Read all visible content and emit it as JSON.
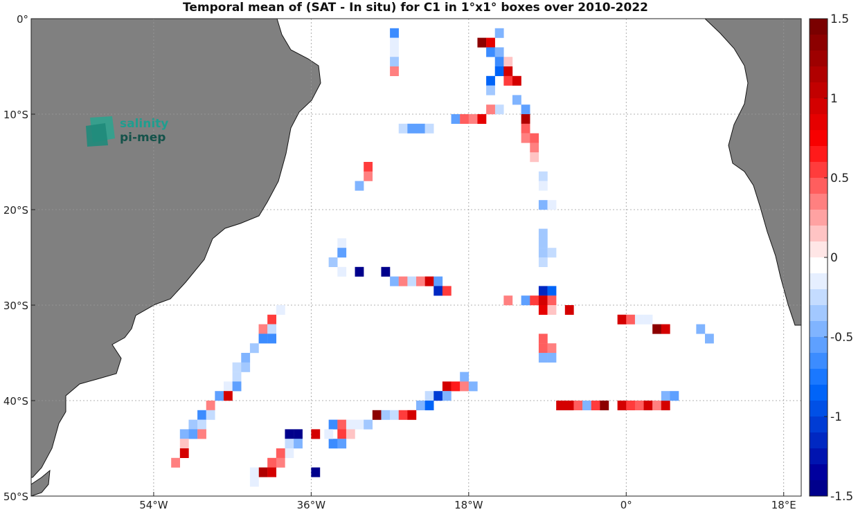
{
  "title": "Temporal mean of (SAT - In situ) for C1 in 1°x1° boxes over 2010-2022",
  "logo": {
    "line1": "salinity",
    "line2": "pi-mep"
  },
  "map": {
    "lon_range": [
      -68,
      20
    ],
    "lat_range": [
      -50,
      0
    ],
    "x_ticks": [
      {
        "lon": -54,
        "label": "54°W"
      },
      {
        "lon": -36,
        "label": "36°W"
      },
      {
        "lon": -18,
        "label": "18°W"
      },
      {
        "lon": 0,
        "label": "0°"
      },
      {
        "lon": 18,
        "label": "18°E"
      }
    ],
    "y_ticks": [
      {
        "lat": 0,
        "label": "0°"
      },
      {
        "lat": -10,
        "label": "10°S"
      },
      {
        "lat": -20,
        "label": "20°S"
      },
      {
        "lat": -30,
        "label": "30°S"
      },
      {
        "lat": -40,
        "label": "40°S"
      },
      {
        "lat": -50,
        "label": "50°S"
      }
    ],
    "land_color": "#808080",
    "grid": true
  },
  "colorbar": {
    "min": -1.5,
    "max": 1.5,
    "ticks": [
      {
        "value": 1.5,
        "label": "1.5"
      },
      {
        "value": 1,
        "label": "1"
      },
      {
        "value": 0.5,
        "label": "0.5"
      },
      {
        "value": 0,
        "label": "0"
      },
      {
        "value": -0.5,
        "label": "-0.5"
      },
      {
        "value": -1,
        "label": "-1"
      },
      {
        "value": -1.5,
        "label": "-1.5"
      }
    ],
    "colors_top_to_bottom": [
      "#7a0000",
      "#8c0000",
      "#9e0000",
      "#b00000",
      "#c20000",
      "#d40000",
      "#e60000",
      "#f80000",
      "#ff1a1a",
      "#ff3c3c",
      "#ff5e5e",
      "#ff8080",
      "#ffa2a2",
      "#ffc4c4",
      "#ffe6e6",
      "#ffffff",
      "#e6efff",
      "#c4dcff",
      "#a2c8ff",
      "#80b4ff",
      "#5ea0ff",
      "#3c8cff",
      "#1a78ff",
      "#0064f8",
      "#0050e6",
      "#003cd4",
      "#0028c2",
      "#0014b0",
      "#00009e",
      "#00008c"
    ]
  },
  "chart_data": {
    "type": "heatmap",
    "title": "Temporal mean of (SAT - In situ) for C1 in 1°x1° boxes over 2010-2022",
    "xlabel": "",
    "ylabel": "",
    "x_unit": "longitude (°E)",
    "y_unit": "latitude (°N)",
    "value_range": [
      -1.5,
      1.5
    ],
    "cells": [
      {
        "lon": -27,
        "lat": -1,
        "v": -0.6
      },
      {
        "lon": -27,
        "lat": -2,
        "v": -0.1
      },
      {
        "lon": -27,
        "lat": -3,
        "v": -0.1
      },
      {
        "lon": -27,
        "lat": -4,
        "v": -0.3
      },
      {
        "lon": -27,
        "lat": -5,
        "v": 0.4
      },
      {
        "lon": -15,
        "lat": -1,
        "v": -0.4
      },
      {
        "lon": -17,
        "lat": -2,
        "v": 1.4
      },
      {
        "lon": -16,
        "lat": -2,
        "v": 0.8
      },
      {
        "lon": -16,
        "lat": -3,
        "v": -0.6
      },
      {
        "lon": -15,
        "lat": -3,
        "v": -0.4
      },
      {
        "lon": -15,
        "lat": -4,
        "v": -0.6
      },
      {
        "lon": -14,
        "lat": -4,
        "v": 0.2
      },
      {
        "lon": -15,
        "lat": -5,
        "v": -0.8
      },
      {
        "lon": -14,
        "lat": -5,
        "v": 0.9
      },
      {
        "lon": -16,
        "lat": -6,
        "v": -0.8
      },
      {
        "lon": -14,
        "lat": -6,
        "v": 0.6
      },
      {
        "lon": -13,
        "lat": -6,
        "v": 0.9
      },
      {
        "lon": -16,
        "lat": -7,
        "v": -0.3
      },
      {
        "lon": -13,
        "lat": -8,
        "v": -0.4
      },
      {
        "lon": -15,
        "lat": -9,
        "v": -0.2
      },
      {
        "lon": -16,
        "lat": -9,
        "v": 0.3
      },
      {
        "lon": -12,
        "lat": -9,
        "v": -0.5
      },
      {
        "lon": -20,
        "lat": -10,
        "v": -0.5
      },
      {
        "lon": -19,
        "lat": -10,
        "v": 0.5
      },
      {
        "lon": -18,
        "lat": -10,
        "v": 0.3
      },
      {
        "lon": -17,
        "lat": -10,
        "v": 0.8
      },
      {
        "lon": -12,
        "lat": -10,
        "v": 1.1
      },
      {
        "lon": -26,
        "lat": -11,
        "v": -0.2
      },
      {
        "lon": -25,
        "lat": -11,
        "v": -0.5
      },
      {
        "lon": -24,
        "lat": -11,
        "v": -0.5
      },
      {
        "lon": -23,
        "lat": -11,
        "v": -0.2
      },
      {
        "lon": -12,
        "lat": -11,
        "v": 0.5
      },
      {
        "lon": -12,
        "lat": -12,
        "v": 0.4
      },
      {
        "lon": -11,
        "lat": -12,
        "v": 0.5
      },
      {
        "lon": -11,
        "lat": -13,
        "v": 0.4
      },
      {
        "lon": -11,
        "lat": -14,
        "v": 0.2
      },
      {
        "lon": -30,
        "lat": -15,
        "v": 0.6
      },
      {
        "lon": -30,
        "lat": -16,
        "v": 0.3
      },
      {
        "lon": -31,
        "lat": -17,
        "v": -0.4
      },
      {
        "lon": -10,
        "lat": -16,
        "v": -0.2
      },
      {
        "lon": -10,
        "lat": -17,
        "v": -0.1
      },
      {
        "lon": -10,
        "lat": -19,
        "v": -0.4
      },
      {
        "lon": -9,
        "lat": -19,
        "v": -0.1
      },
      {
        "lon": -10,
        "lat": -22,
        "v": -0.3
      },
      {
        "lon": -10,
        "lat": -23,
        "v": -0.3
      },
      {
        "lon": -10,
        "lat": -24,
        "v": -0.3
      },
      {
        "lon": -9,
        "lat": -24,
        "v": -0.2
      },
      {
        "lon": -10,
        "lat": -25,
        "v": -0.2
      },
      {
        "lon": -33,
        "lat": -23,
        "v": -0.1
      },
      {
        "lon": -33,
        "lat": -24,
        "v": -0.5
      },
      {
        "lon": -34,
        "lat": -25,
        "v": -0.3
      },
      {
        "lon": -33,
        "lat": -26,
        "v": -0.1
      },
      {
        "lon": -31,
        "lat": -26,
        "v": -1.5
      },
      {
        "lon": -28,
        "lat": -26,
        "v": -1.5
      },
      {
        "lon": -27,
        "lat": -27,
        "v": -0.4
      },
      {
        "lon": -26,
        "lat": -27,
        "v": 0.3
      },
      {
        "lon": -25,
        "lat": -27,
        "v": -0.2
      },
      {
        "lon": -24,
        "lat": -27,
        "v": 0.3
      },
      {
        "lon": -23,
        "lat": -27,
        "v": 1.0
      },
      {
        "lon": -22,
        "lat": -27,
        "v": -0.5
      },
      {
        "lon": -22,
        "lat": -28,
        "v": -1.1
      },
      {
        "lon": -21,
        "lat": -28,
        "v": 0.6
      },
      {
        "lon": -10,
        "lat": -28,
        "v": -1.1
      },
      {
        "lon": -9,
        "lat": -28,
        "v": -0.8
      },
      {
        "lon": -14,
        "lat": -29,
        "v": 0.4
      },
      {
        "lon": -12,
        "lat": -29,
        "v": -0.5
      },
      {
        "lon": -11,
        "lat": -29,
        "v": 0.6
      },
      {
        "lon": -10,
        "lat": -29,
        "v": 0.9
      },
      {
        "lon": -9,
        "lat": -29,
        "v": 0.5
      },
      {
        "lon": -10,
        "lat": -30,
        "v": 0.8
      },
      {
        "lon": -9,
        "lat": -30,
        "v": 0.2
      },
      {
        "lon": -7,
        "lat": -30,
        "v": 1.0
      },
      {
        "lon": -1,
        "lat": -31,
        "v": 1.0
      },
      {
        "lon": 0,
        "lat": -31,
        "v": 0.5
      },
      {
        "lon": 1,
        "lat": -31,
        "v": -0.1
      },
      {
        "lon": 2,
        "lat": -31,
        "v": -0.1
      },
      {
        "lon": 3,
        "lat": -32,
        "v": 1.4
      },
      {
        "lon": 4,
        "lat": -32,
        "v": 1.0
      },
      {
        "lon": 8,
        "lat": -32,
        "v": -0.4
      },
      {
        "lon": 9,
        "lat": -33,
        "v": -0.4
      },
      {
        "lon": -10,
        "lat": -33,
        "v": 0.5
      },
      {
        "lon": -10,
        "lat": -34,
        "v": 0.5
      },
      {
        "lon": -9,
        "lat": -34,
        "v": 0.4
      },
      {
        "lon": -10,
        "lat": -35,
        "v": -0.4
      },
      {
        "lon": -9,
        "lat": -35,
        "v": -0.4
      },
      {
        "lon": -40,
        "lat": -30,
        "v": -0.1
      },
      {
        "lon": -41,
        "lat": -31,
        "v": 0.6
      },
      {
        "lon": -42,
        "lat": -32,
        "v": 0.4
      },
      {
        "lon": -41,
        "lat": -32,
        "v": -0.2
      },
      {
        "lon": -42,
        "lat": -33,
        "v": -0.6
      },
      {
        "lon": -41,
        "lat": -33,
        "v": -0.6
      },
      {
        "lon": -43,
        "lat": -34,
        "v": -0.3
      },
      {
        "lon": -44,
        "lat": -35,
        "v": -0.4
      },
      {
        "lon": -45,
        "lat": -36,
        "v": -0.2
      },
      {
        "lon": -44,
        "lat": -36,
        "v": -0.3
      },
      {
        "lon": -45,
        "lat": -37,
        "v": -0.2
      },
      {
        "lon": -46,
        "lat": -38,
        "v": -0.1
      },
      {
        "lon": -45,
        "lat": -38,
        "v": -0.5
      },
      {
        "lon": -47,
        "lat": -39,
        "v": -0.5
      },
      {
        "lon": -46,
        "lat": -39,
        "v": 1.0
      },
      {
        "lon": -48,
        "lat": -40,
        "v": 0.4
      },
      {
        "lon": -49,
        "lat": -41,
        "v": -0.6
      },
      {
        "lon": -48,
        "lat": -41,
        "v": -0.2
      },
      {
        "lon": -50,
        "lat": -42,
        "v": -0.3
      },
      {
        "lon": -49,
        "lat": -42,
        "v": -0.2
      },
      {
        "lon": -50,
        "lat": -43,
        "v": -0.5
      },
      {
        "lon": -49,
        "lat": -43,
        "v": 0.4
      },
      {
        "lon": -51,
        "lat": -43,
        "v": -0.4
      },
      {
        "lon": -51,
        "lat": -44,
        "v": 0.2
      },
      {
        "lon": -51,
        "lat": -45,
        "v": 0.9
      },
      {
        "lon": -52,
        "lat": -46,
        "v": 0.4
      },
      {
        "lon": -19,
        "lat": -37,
        "v": -0.4
      },
      {
        "lon": -21,
        "lat": -38,
        "v": 1.0
      },
      {
        "lon": -20,
        "lat": -38,
        "v": 0.7
      },
      {
        "lon": -19,
        "lat": -38,
        "v": 0.3
      },
      {
        "lon": -18,
        "lat": -38,
        "v": -0.4
      },
      {
        "lon": -23,
        "lat": -39,
        "v": -0.2
      },
      {
        "lon": -22,
        "lat": -39,
        "v": -1.0
      },
      {
        "lon": -21,
        "lat": -39,
        "v": -0.4
      },
      {
        "lon": -24,
        "lat": -40,
        "v": -0.4
      },
      {
        "lon": -23,
        "lat": -40,
        "v": -0.8
      },
      {
        "lon": -29,
        "lat": -41,
        "v": 1.4
      },
      {
        "lon": -28,
        "lat": -41,
        "v": -0.3
      },
      {
        "lon": -27,
        "lat": -41,
        "v": -0.2
      },
      {
        "lon": -26,
        "lat": -41,
        "v": 0.6
      },
      {
        "lon": -25,
        "lat": -41,
        "v": 0.9
      },
      {
        "lon": -8,
        "lat": -40,
        "v": 1.0
      },
      {
        "lon": -7,
        "lat": -40,
        "v": 1.0
      },
      {
        "lon": -6,
        "lat": -40,
        "v": 0.5
      },
      {
        "lon": -5,
        "lat": -40,
        "v": -0.4
      },
      {
        "lon": -4,
        "lat": -40,
        "v": 0.6
      },
      {
        "lon": -3,
        "lat": -40,
        "v": 1.4
      },
      {
        "lon": -1,
        "lat": -40,
        "v": 1.0
      },
      {
        "lon": 0,
        "lat": -40,
        "v": 0.6
      },
      {
        "lon": 1,
        "lat": -40,
        "v": 0.5
      },
      {
        "lon": 2,
        "lat": -40,
        "v": 1.0
      },
      {
        "lon": 3,
        "lat": -40,
        "v": 0.4
      },
      {
        "lon": 4,
        "lat": -40,
        "v": 0.9
      },
      {
        "lon": 4,
        "lat": -39,
        "v": -0.4
      },
      {
        "lon": 5,
        "lat": -39,
        "v": -0.5
      },
      {
        "lon": -34,
        "lat": -42,
        "v": -0.6
      },
      {
        "lon": -33,
        "lat": -42,
        "v": 0.5
      },
      {
        "lon": -32,
        "lat": -42,
        "v": -0.1
      },
      {
        "lon": -31,
        "lat": -42,
        "v": -0.1
      },
      {
        "lon": -30,
        "lat": -42,
        "v": -0.3
      },
      {
        "lon": -33,
        "lat": -43,
        "v": 0.6
      },
      {
        "lon": -32,
        "lat": -43,
        "v": 0.2
      },
      {
        "lon": -34,
        "lat": -44,
        "v": -0.6
      },
      {
        "lon": -33,
        "lat": -44,
        "v": -0.5
      },
      {
        "lon": -39,
        "lat": -43,
        "v": -1.5
      },
      {
        "lon": -38,
        "lat": -43,
        "v": -1.5
      },
      {
        "lon": -36,
        "lat": -43,
        "v": 1.0
      },
      {
        "lon": -34.5,
        "lat": -43,
        "v": -0.1
      },
      {
        "lon": -39,
        "lat": -44,
        "v": -0.2
      },
      {
        "lon": -38,
        "lat": -44,
        "v": -0.4
      },
      {
        "lon": -39,
        "lat": -45,
        "v": -0.1
      },
      {
        "lon": -40,
        "lat": -45,
        "v": 0.5
      },
      {
        "lon": -40,
        "lat": -46,
        "v": 0.3
      },
      {
        "lon": -41,
        "lat": -46,
        "v": 0.5
      },
      {
        "lon": -42,
        "lat": -47,
        "v": 1.2
      },
      {
        "lon": -41,
        "lat": -47,
        "v": 1.0
      },
      {
        "lon": -43,
        "lat": -47,
        "v": -0.1
      },
      {
        "lon": -43,
        "lat": -48,
        "v": -0.1
      },
      {
        "lon": -36,
        "lat": -47,
        "v": -1.5
      }
    ]
  }
}
